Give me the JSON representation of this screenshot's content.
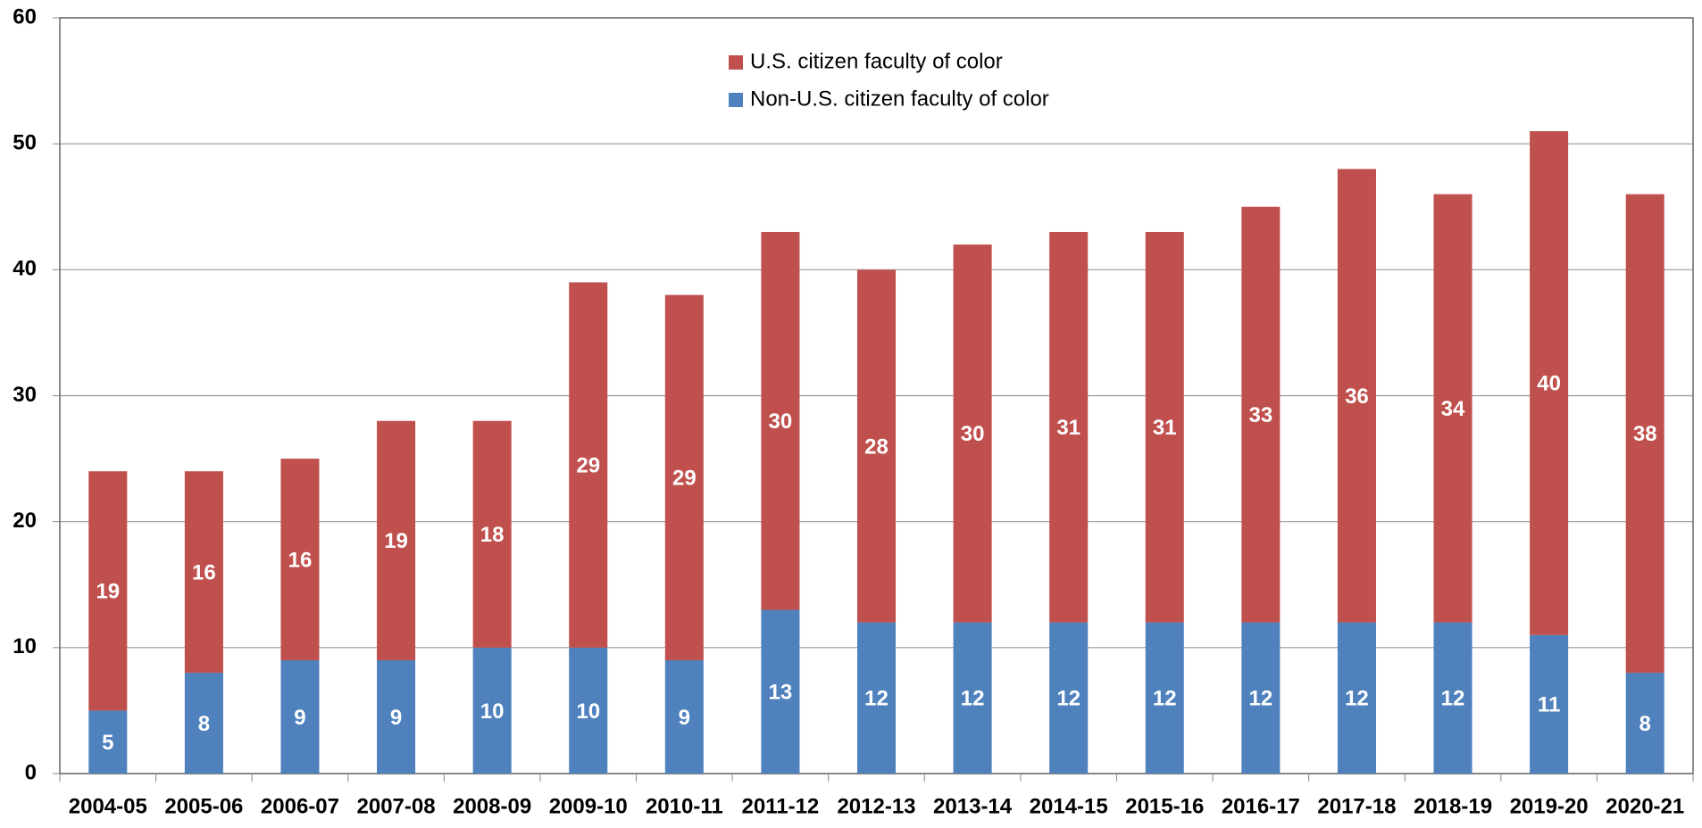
{
  "chart_data": {
    "type": "stacked_bar",
    "categories": [
      "2004-05",
      "2005-06",
      "2006-07",
      "2007-08",
      "2008-09",
      "2009-10",
      "2010-11",
      "2011-12",
      "2012-13",
      "2013-14",
      "2014-15",
      "2015-16",
      "2016-17",
      "2017-18",
      "2018-19",
      "2019-20",
      "2020-21"
    ],
    "series": [
      {
        "name": "Non-U.S. citizen faculty of color",
        "color": "#4f81bd",
        "values": [
          5,
          8,
          9,
          9,
          10,
          10,
          9,
          13,
          12,
          12,
          12,
          12,
          12,
          12,
          12,
          11,
          8
        ]
      },
      {
        "name": "U.S. citizen faculty of color",
        "color": "#c0504d",
        "values": [
          19,
          16,
          16,
          19,
          18,
          29,
          29,
          30,
          28,
          30,
          31,
          31,
          33,
          36,
          34,
          40,
          38
        ]
      }
    ],
    "ylim": [
      0,
      60
    ],
    "yticks": [
      0,
      10,
      20,
      30,
      40,
      50,
      60
    ],
    "grid": true,
    "legend": "top"
  }
}
